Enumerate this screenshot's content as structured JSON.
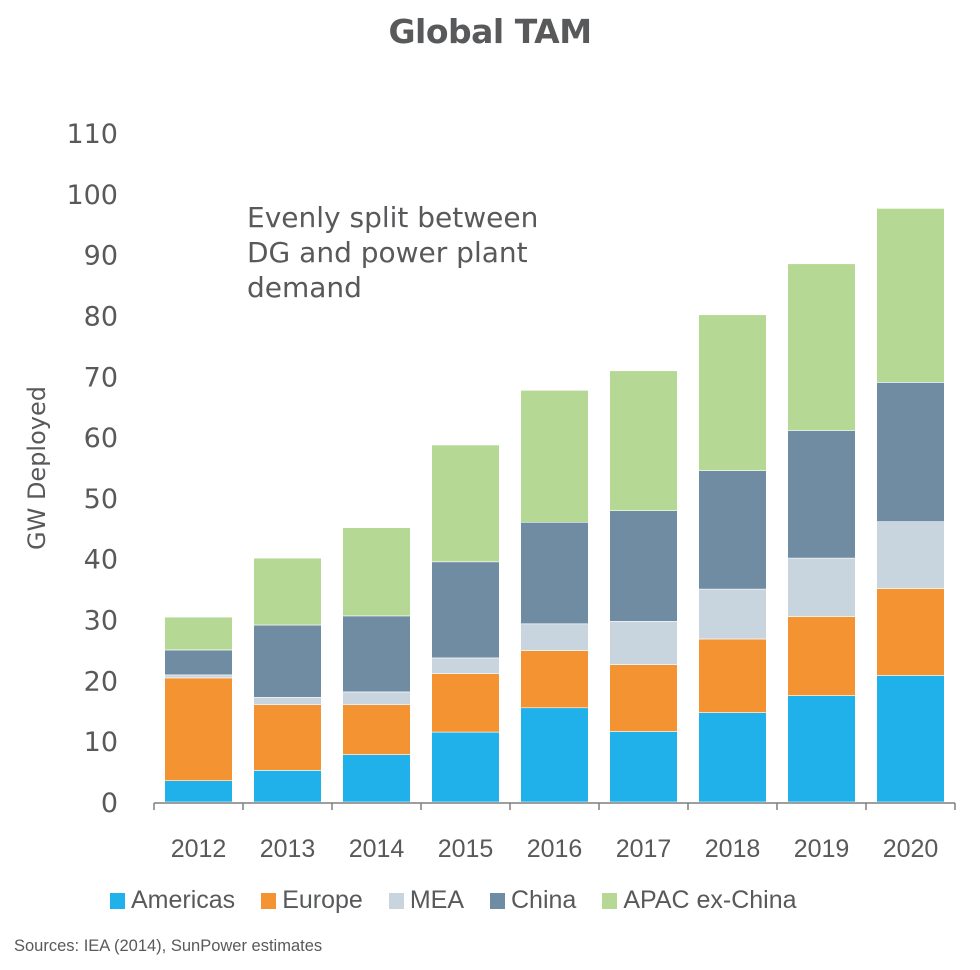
{
  "chart_data": {
    "type": "bar",
    "stacked": true,
    "title": "Global TAM",
    "annotation": "Evenly split between\nDG and power plant\ndemand",
    "xlabel": "",
    "ylabel": "GW Deployed",
    "ylim": [
      0,
      110
    ],
    "yticks": [
      0,
      10,
      20,
      30,
      40,
      50,
      60,
      70,
      80,
      90,
      100,
      110
    ],
    "grid": false,
    "legend_position": "bottom",
    "categories": [
      "2012",
      "2013",
      "2014",
      "2015",
      "2016",
      "2017",
      "2018",
      "2019",
      "2020"
    ],
    "series": [
      {
        "name": "Americas",
        "color": "#20b0ea",
        "values": [
          3.5,
          5.2,
          7.8,
          11.5,
          15.5,
          11.6,
          14.7,
          17.5,
          20.8
        ]
      },
      {
        "name": "Europe",
        "color": "#f39332",
        "values": [
          16.9,
          10.8,
          8.2,
          9.6,
          9.4,
          11.0,
          12.1,
          13.0,
          14.3
        ]
      },
      {
        "name": "MEA",
        "color": "#c9d5de",
        "values": [
          0.5,
          1.2,
          2.1,
          2.6,
          4.4,
          7.1,
          8.2,
          9.6,
          11.0
        ]
      },
      {
        "name": "China",
        "color": "#6f8ca3",
        "values": [
          4.1,
          11.9,
          12.5,
          15.8,
          16.7,
          18.2,
          19.5,
          21.0,
          22.9
        ]
      },
      {
        "name": "APAC ex-China",
        "color": "#b5d994",
        "values": [
          5.4,
          11.0,
          14.5,
          19.2,
          21.7,
          23.0,
          25.6,
          27.4,
          28.6
        ]
      }
    ],
    "source": "Sources: IEA (2014), SunPower estimates"
  }
}
